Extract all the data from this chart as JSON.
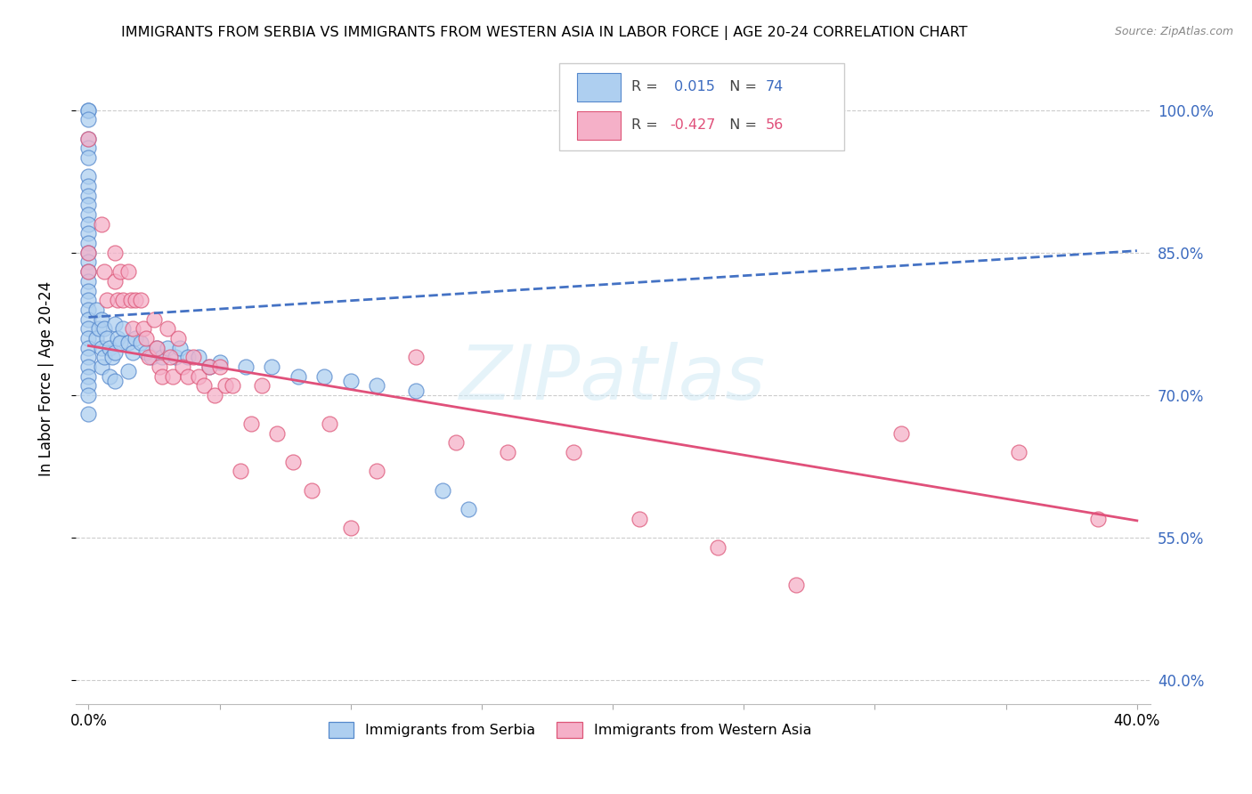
{
  "title": "IMMIGRANTS FROM SERBIA VS IMMIGRANTS FROM WESTERN ASIA IN LABOR FORCE | AGE 20-24 CORRELATION CHART",
  "source": "Source: ZipAtlas.com",
  "ylabel": "In Labor Force | Age 20-24",
  "r_serbia": 0.015,
  "n_serbia": 74,
  "r_western_asia": -0.427,
  "n_western_asia": 56,
  "serbia_color": "#aecff0",
  "serbia_edge": "#5588cc",
  "western_asia_color": "#f5b0c8",
  "western_asia_edge": "#dd5577",
  "trend_serbia_color": "#4472c4",
  "trend_western_asia_color": "#e0507a",
  "xlim_min": -0.005,
  "xlim_max": 0.405,
  "ylim_min": 0.375,
  "ylim_max": 1.06,
  "ytick_values": [
    0.4,
    0.55,
    0.7,
    0.85,
    1.0
  ],
  "ytick_labels": [
    "40.0%",
    "55.0%",
    "70.0%",
    "85.0%",
    "100.0%"
  ],
  "xtick_values": [
    0.0,
    0.05,
    0.1,
    0.15,
    0.2,
    0.25,
    0.3,
    0.35,
    0.4
  ],
  "xtick_labels": [
    "0.0%",
    "",
    "",
    "",
    "",
    "",
    "",
    "",
    "40.0%"
  ],
  "trend_serbia_x0": 0.0,
  "trend_serbia_y0": 0.782,
  "trend_serbia_x1": 0.4,
  "trend_serbia_y1": 0.852,
  "trend_wa_x0": 0.0,
  "trend_wa_y0": 0.752,
  "trend_wa_x1": 0.4,
  "trend_wa_y1": 0.568,
  "serbia_x": [
    0.0,
    0.0,
    0.0,
    0.0,
    0.0,
    0.0,
    0.0,
    0.0,
    0.0,
    0.0,
    0.0,
    0.0,
    0.0,
    0.0,
    0.0,
    0.0,
    0.0,
    0.0,
    0.0,
    0.0,
    0.0,
    0.0,
    0.0,
    0.0,
    0.0,
    0.0,
    0.0,
    0.0,
    0.0,
    0.0,
    0.0,
    0.003,
    0.003,
    0.004,
    0.005,
    0.005,
    0.005,
    0.006,
    0.006,
    0.007,
    0.008,
    0.008,
    0.009,
    0.01,
    0.01,
    0.01,
    0.011,
    0.012,
    0.013,
    0.015,
    0.015,
    0.017,
    0.018,
    0.02,
    0.022,
    0.024,
    0.026,
    0.028,
    0.03,
    0.033,
    0.035,
    0.038,
    0.042,
    0.046,
    0.05,
    0.06,
    0.07,
    0.08,
    0.09,
    0.1,
    0.11,
    0.125,
    0.135,
    0.145
  ],
  "serbia_y": [
    1.0,
    1.0,
    0.99,
    0.97,
    0.96,
    0.95,
    0.93,
    0.92,
    0.91,
    0.9,
    0.89,
    0.88,
    0.87,
    0.86,
    0.85,
    0.84,
    0.83,
    0.82,
    0.81,
    0.8,
    0.79,
    0.78,
    0.77,
    0.76,
    0.75,
    0.74,
    0.73,
    0.72,
    0.71,
    0.7,
    0.68,
    0.79,
    0.76,
    0.77,
    0.78,
    0.75,
    0.73,
    0.77,
    0.74,
    0.76,
    0.75,
    0.72,
    0.74,
    0.775,
    0.745,
    0.715,
    0.76,
    0.755,
    0.77,
    0.755,
    0.725,
    0.745,
    0.76,
    0.755,
    0.745,
    0.74,
    0.75,
    0.74,
    0.75,
    0.74,
    0.75,
    0.74,
    0.74,
    0.73,
    0.735,
    0.73,
    0.73,
    0.72,
    0.72,
    0.715,
    0.71,
    0.705,
    0.6,
    0.58
  ],
  "western_asia_x": [
    0.0,
    0.0,
    0.0,
    0.005,
    0.006,
    0.007,
    0.01,
    0.01,
    0.011,
    0.012,
    0.013,
    0.015,
    0.016,
    0.017,
    0.018,
    0.02,
    0.021,
    0.022,
    0.023,
    0.025,
    0.026,
    0.027,
    0.028,
    0.03,
    0.031,
    0.032,
    0.034,
    0.036,
    0.038,
    0.04,
    0.042,
    0.044,
    0.046,
    0.048,
    0.05,
    0.052,
    0.055,
    0.058,
    0.062,
    0.066,
    0.072,
    0.078,
    0.085,
    0.092,
    0.1,
    0.11,
    0.125,
    0.14,
    0.16,
    0.185,
    0.21,
    0.24,
    0.27,
    0.31,
    0.355,
    0.385
  ],
  "western_asia_y": [
    0.97,
    0.85,
    0.83,
    0.88,
    0.83,
    0.8,
    0.85,
    0.82,
    0.8,
    0.83,
    0.8,
    0.83,
    0.8,
    0.77,
    0.8,
    0.8,
    0.77,
    0.76,
    0.74,
    0.78,
    0.75,
    0.73,
    0.72,
    0.77,
    0.74,
    0.72,
    0.76,
    0.73,
    0.72,
    0.74,
    0.72,
    0.71,
    0.73,
    0.7,
    0.73,
    0.71,
    0.71,
    0.62,
    0.67,
    0.71,
    0.66,
    0.63,
    0.6,
    0.67,
    0.56,
    0.62,
    0.74,
    0.65,
    0.64,
    0.64,
    0.57,
    0.54,
    0.5,
    0.66,
    0.64,
    0.57
  ]
}
